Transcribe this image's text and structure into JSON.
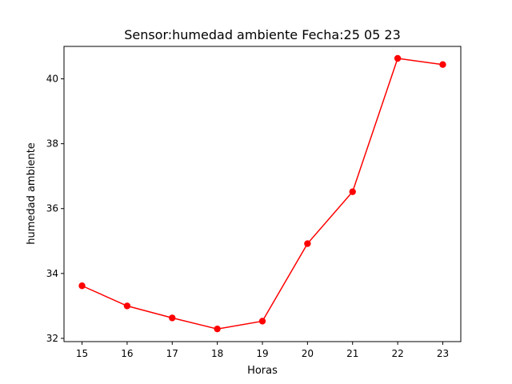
{
  "chart_data": {
    "type": "line",
    "title": "Sensor:humedad ambiente Fecha:25 05 23",
    "xlabel": "Horas",
    "ylabel": "humedad ambiente",
    "x": [
      15,
      16,
      17,
      18,
      19,
      20,
      21,
      22,
      23
    ],
    "series": [
      {
        "values": [
          33.62,
          33.0,
          32.63,
          32.29,
          32.53,
          34.92,
          36.52,
          40.63,
          40.44
        ],
        "color": "#ff0000",
        "marker": "circle"
      }
    ],
    "xticks": [
      15,
      16,
      17,
      18,
      19,
      20,
      21,
      22,
      23
    ],
    "yticks": [
      32,
      34,
      36,
      38,
      40
    ],
    "xlim": [
      14.6,
      23.4
    ],
    "ylim": [
      31.9,
      41.0
    ],
    "grid": false
  }
}
